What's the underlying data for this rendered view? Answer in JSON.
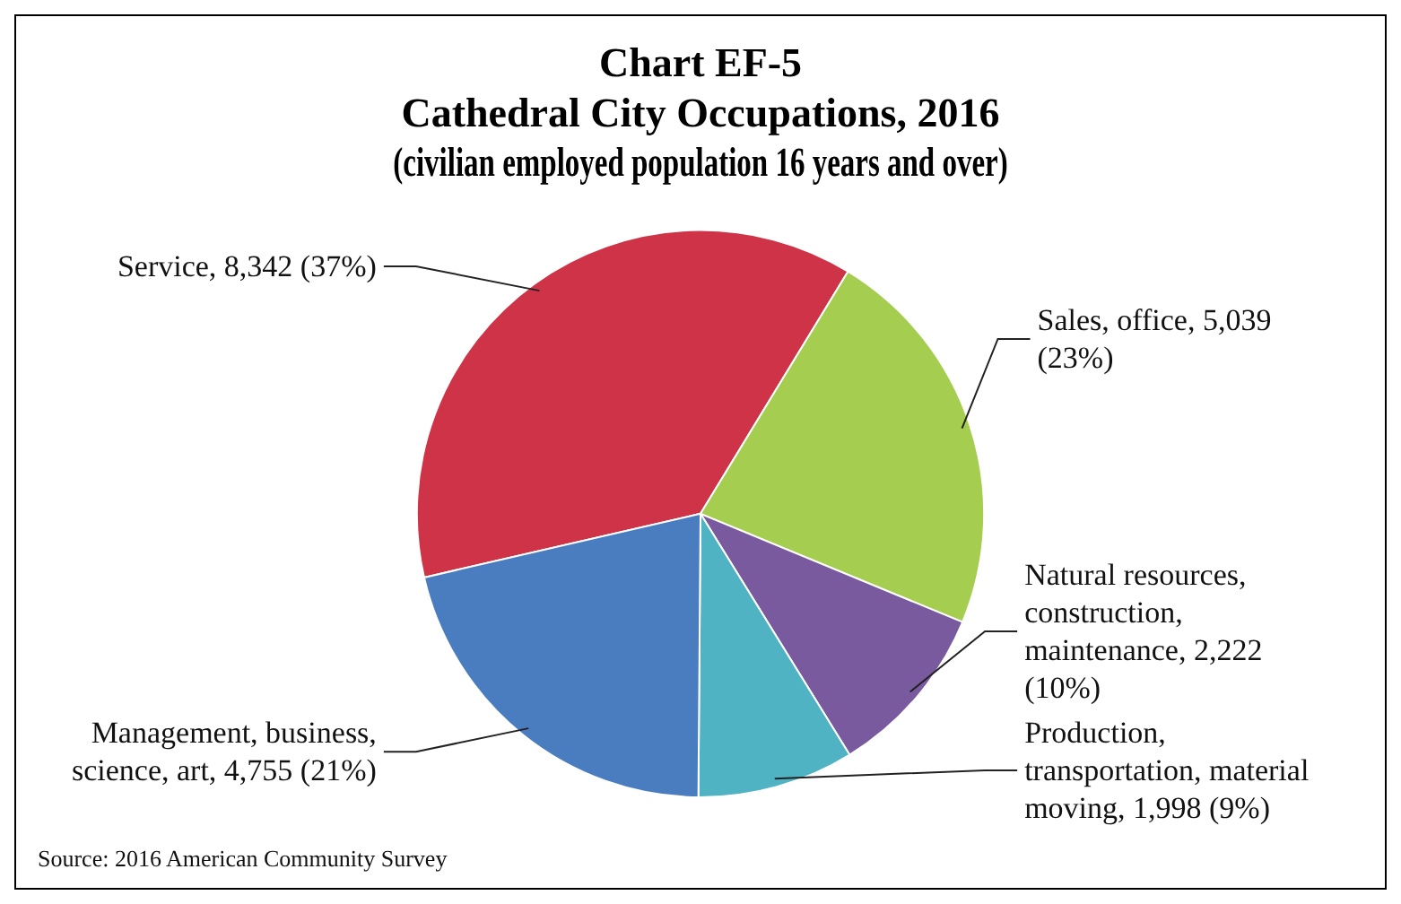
{
  "chart_data": {
    "type": "pie",
    "title": "Chart EF-5\nCathedral City Occupations, 2016",
    "subtitle": "(civilian employed population 16 years and over)",
    "categories": [
      "Service",
      "Sales, office",
      "Natural resources, construction, maintenance",
      "Production, transportation, material moving",
      "Management, business, science, art"
    ],
    "values": [
      8342,
      5039,
      2222,
      1998,
      4755
    ],
    "colors": [
      "#cf3347",
      "#a5cd50",
      "#7a5a9e",
      "#4fb3c4",
      "#4a7dbf"
    ],
    "value_labels": [
      "8,342 (37%)",
      "5,039 (23%)",
      "2,222 (10%)",
      "1,998 (9%)",
      "4,755 (21%)"
    ],
    "legend": false,
    "annotations": [
      "Source: 2016 American Community Survey"
    ]
  }
}
